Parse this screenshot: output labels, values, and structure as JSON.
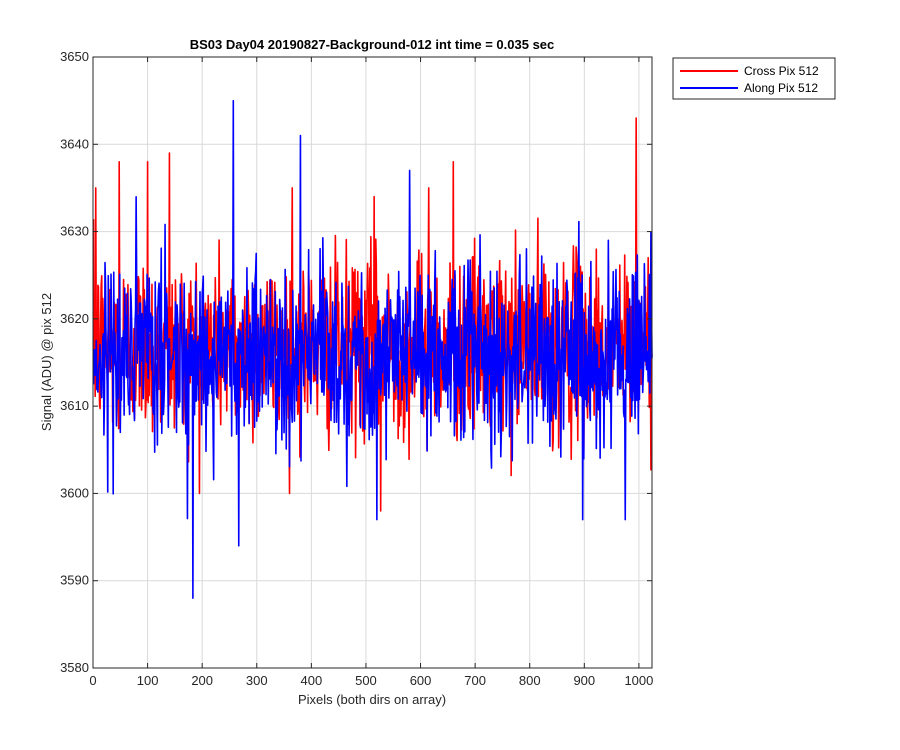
{
  "chart_data": {
    "type": "line",
    "title": "BS03 Day04 20190827-Background-012 int time = 0.035 sec",
    "xlabel": "Pixels (both dirs on array)",
    "ylabel": "Signal (ADU) @ pix 512",
    "xlim": [
      0,
      1024
    ],
    "ylim": [
      3580,
      3650
    ],
    "xticks": [
      0,
      100,
      200,
      300,
      400,
      500,
      600,
      700,
      800,
      900,
      1000
    ],
    "yticks": [
      3580,
      3590,
      3600,
      3610,
      3620,
      3630,
      3640,
      3650
    ],
    "grid": true,
    "legend_position": "outside-top-right",
    "series": [
      {
        "name": "Cross Pix 512",
        "color": "#ff0000",
        "x_start": 1,
        "x_step": 1,
        "count": 1024,
        "mean": 3617,
        "range": [
          3598,
          3643
        ],
        "notable_points": [
          {
            "x": 5,
            "y": 3635
          },
          {
            "x": 48,
            "y": 3638
          },
          {
            "x": 100,
            "y": 3638
          },
          {
            "x": 140,
            "y": 3639
          },
          {
            "x": 365,
            "y": 3635
          },
          {
            "x": 515,
            "y": 3634
          },
          {
            "x": 527,
            "y": 3598
          },
          {
            "x": 615,
            "y": 3635
          },
          {
            "x": 660,
            "y": 3638
          },
          {
            "x": 995,
            "y": 3643
          }
        ]
      },
      {
        "name": "Along Pix 512",
        "color": "#0000ff",
        "x_start": 1,
        "x_step": 1,
        "count": 1024,
        "mean": 3616,
        "range": [
          3588,
          3645
        ],
        "notable_points": [
          {
            "x": 183,
            "y": 3588
          },
          {
            "x": 257,
            "y": 3645
          },
          {
            "x": 267,
            "y": 3594
          },
          {
            "x": 380,
            "y": 3641
          },
          {
            "x": 520,
            "y": 3597
          },
          {
            "x": 580,
            "y": 3637
          },
          {
            "x": 897,
            "y": 3597
          },
          {
            "x": 975,
            "y": 3597
          }
        ]
      }
    ]
  }
}
